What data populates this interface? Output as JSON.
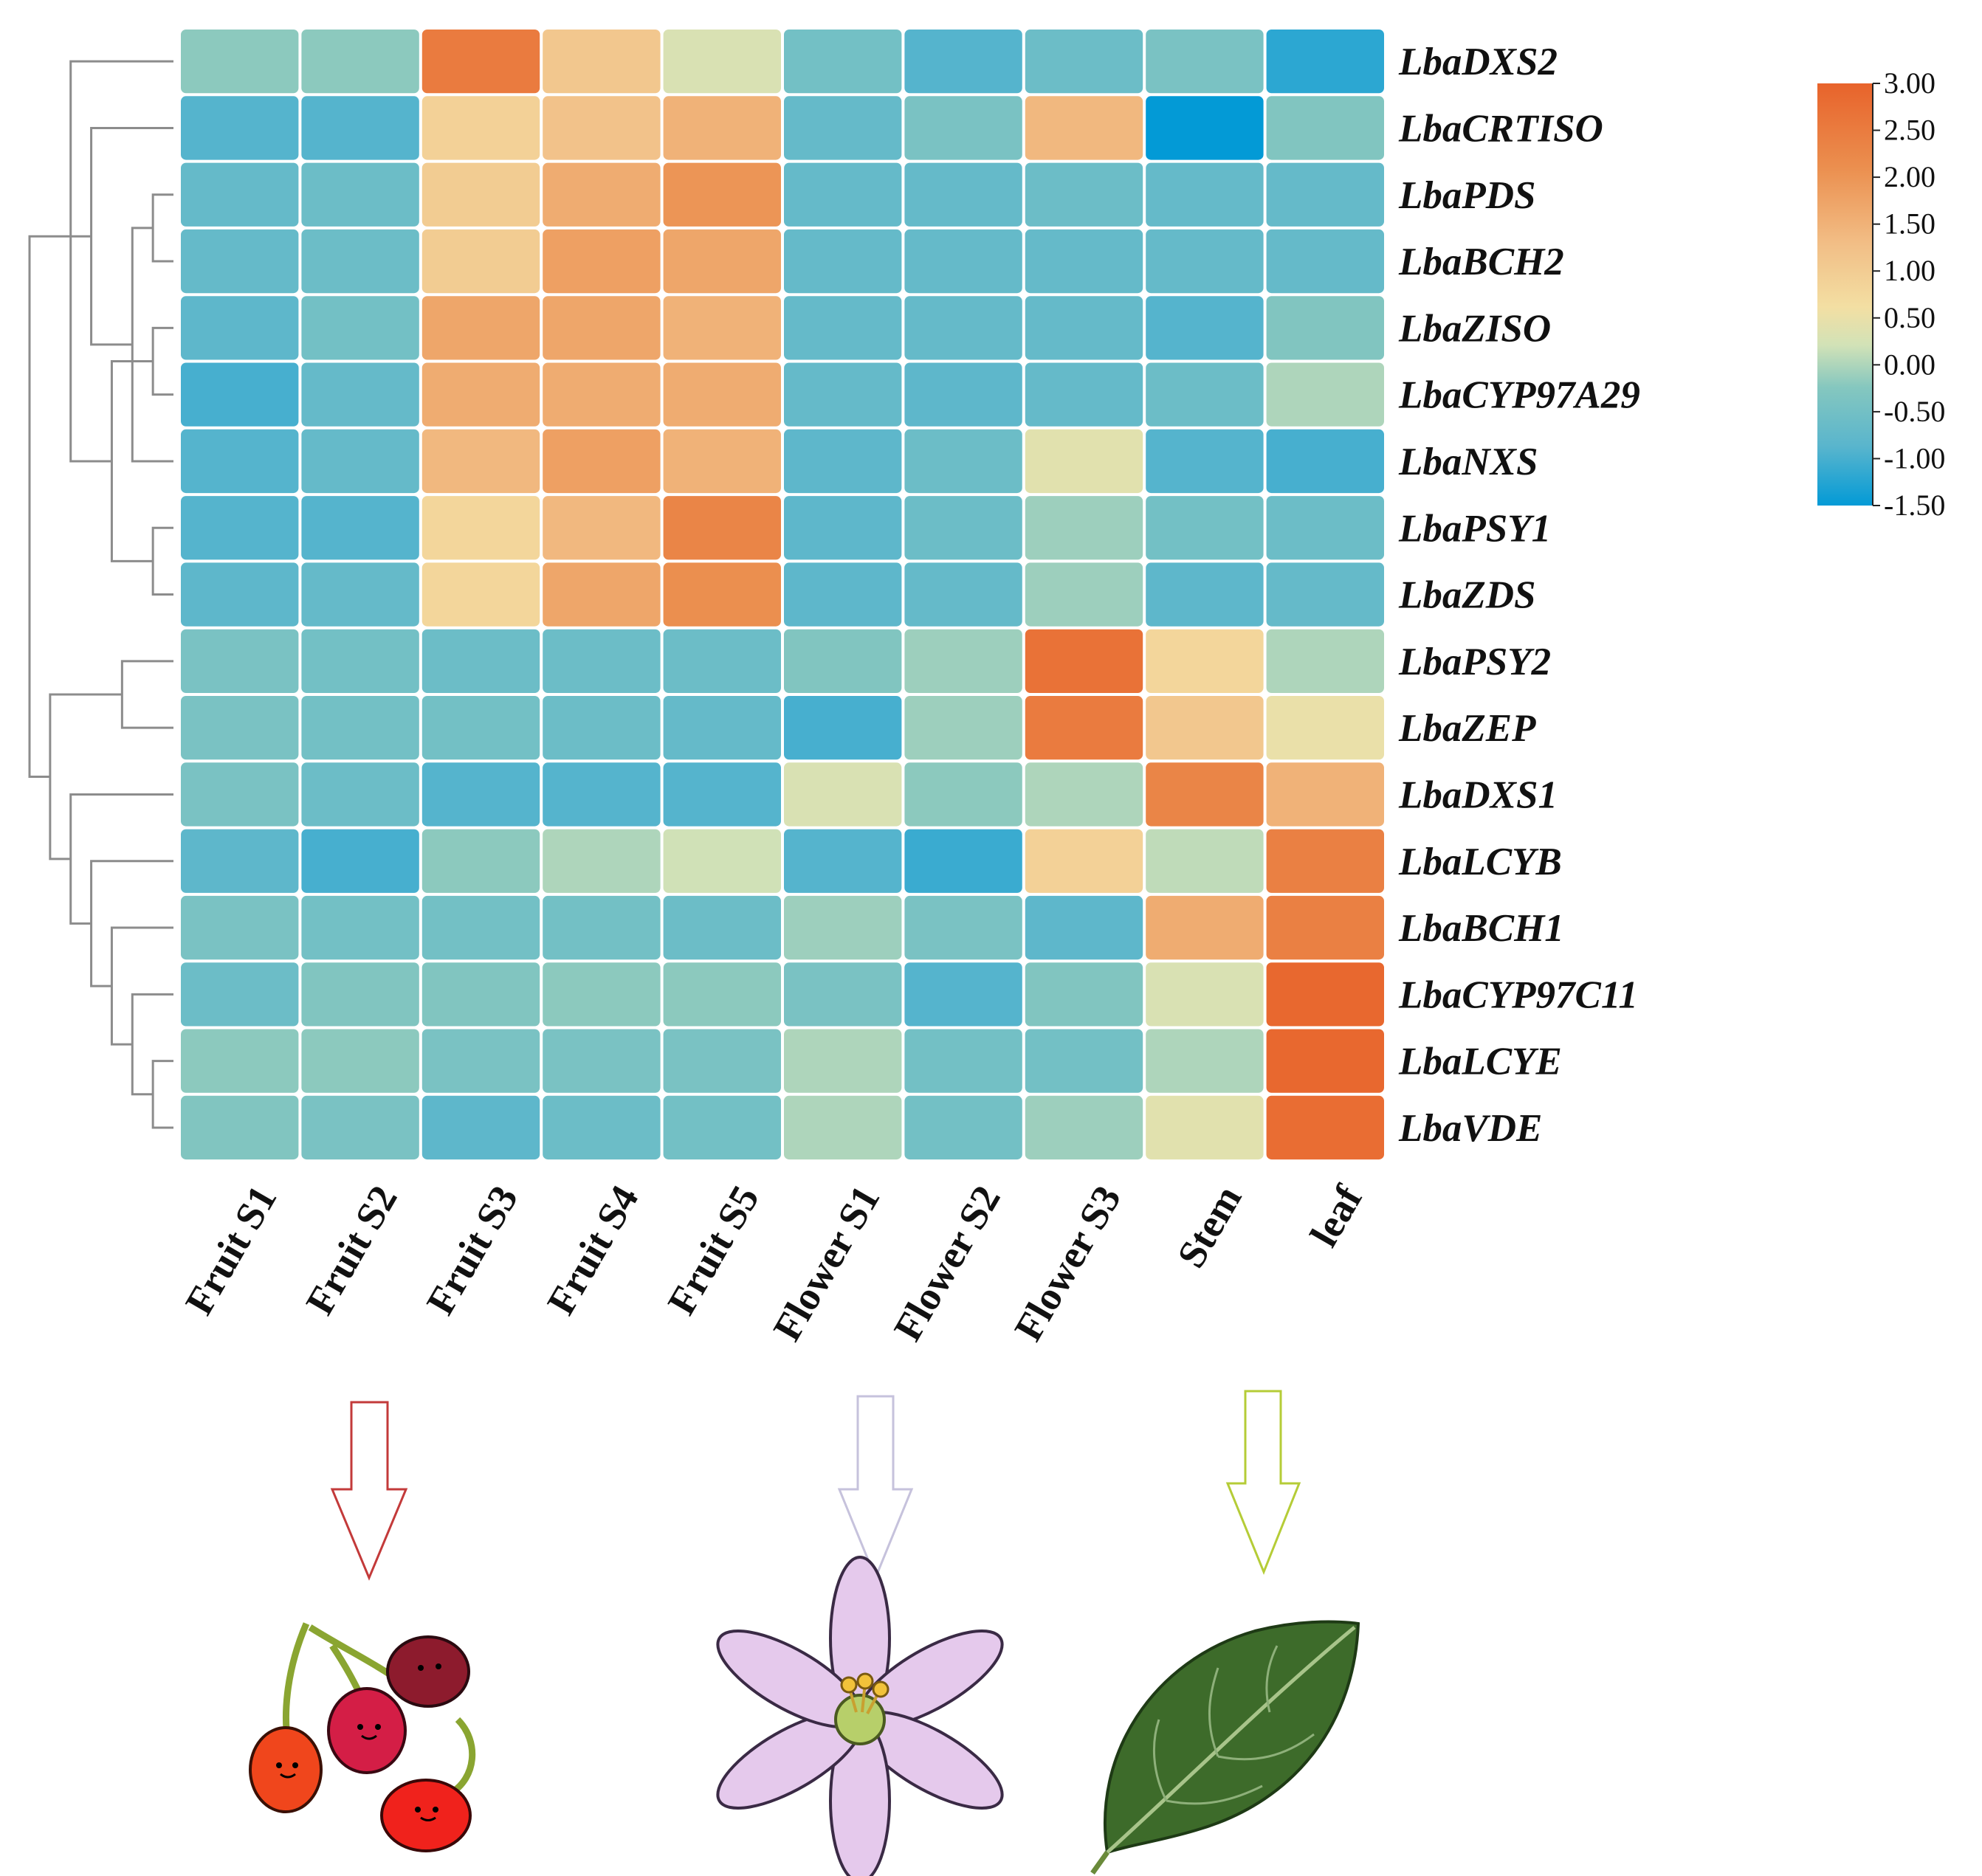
{
  "chart_data": {
    "type": "heatmap",
    "title": "",
    "columns": [
      "Fruit S1",
      "Fruit S2",
      "Fruit S3",
      "Fruit S4",
      "Fruit S5",
      "Flower S1",
      "Flower S2",
      "Flower S3",
      "Stem",
      "leaf"
    ],
    "rows": [
      "LbaDXS2",
      "LbaCRTISO",
      "LbaPDS",
      "LbaBCH2",
      "LbaZISO",
      "LbaCYP97A29",
      "LbaNXS",
      "LbaPSY1",
      "LbaZDS",
      "LbaPSY2",
      "LbaZEP",
      "LbaDXS1",
      "LbaLCYB",
      "LbaBCH1",
      "LbaCYP97C11",
      "LbaLCYE",
      "LbaVDE"
    ],
    "values": [
      [
        -0.2,
        -0.2,
        2.5,
        1.1,
        0.3,
        -0.5,
        -0.9,
        -0.6,
        -0.4,
        -1.2
      ],
      [
        -0.9,
        -0.9,
        0.9,
        1.2,
        1.5,
        -0.7,
        -0.4,
        1.4,
        -1.5,
        -0.3
      ],
      [
        -0.7,
        -0.6,
        1.0,
        1.6,
        2.0,
        -0.7,
        -0.7,
        -0.6,
        -0.7,
        -0.7
      ],
      [
        -0.7,
        -0.6,
        1.0,
        1.8,
        1.7,
        -0.7,
        -0.7,
        -0.7,
        -0.7,
        -0.7
      ],
      [
        -0.8,
        -0.5,
        1.7,
        1.7,
        1.5,
        -0.7,
        -0.7,
        -0.7,
        -0.9,
        -0.3
      ],
      [
        -1.0,
        -0.7,
        1.6,
        1.6,
        1.6,
        -0.7,
        -0.8,
        -0.7,
        -0.6,
        0.0
      ],
      [
        -0.9,
        -0.7,
        1.4,
        1.8,
        1.5,
        -0.8,
        -0.6,
        0.4,
        -0.9,
        -1.0
      ],
      [
        -0.9,
        -0.9,
        0.8,
        1.4,
        2.3,
        -0.8,
        -0.6,
        -0.1,
        -0.5,
        -0.6
      ],
      [
        -0.8,
        -0.7,
        0.8,
        1.7,
        2.1,
        -0.8,
        -0.7,
        -0.1,
        -0.8,
        -0.7
      ],
      [
        -0.4,
        -0.5,
        -0.6,
        -0.6,
        -0.6,
        -0.3,
        -0.1,
        2.7,
        0.8,
        0.0
      ],
      [
        -0.4,
        -0.5,
        -0.5,
        -0.6,
        -0.7,
        -1.0,
        -0.1,
        2.5,
        1.1,
        0.5
      ],
      [
        -0.4,
        -0.6,
        -0.9,
        -0.9,
        -0.9,
        0.3,
        -0.2,
        0.0,
        2.3,
        1.5
      ],
      [
        -0.8,
        -1.0,
        -0.2,
        0.0,
        0.2,
        -0.9,
        -1.1,
        0.9,
        0.1,
        2.4
      ],
      [
        -0.4,
        -0.5,
        -0.5,
        -0.5,
        -0.6,
        -0.1,
        -0.4,
        -0.8,
        1.6,
        2.4
      ],
      [
        -0.6,
        -0.3,
        -0.3,
        -0.2,
        -0.2,
        -0.4,
        -0.9,
        -0.3,
        0.3,
        2.9
      ],
      [
        -0.2,
        -0.2,
        -0.4,
        -0.4,
        -0.4,
        0.0,
        -0.5,
        -0.5,
        0.0,
        2.9
      ],
      [
        -0.3,
        -0.4,
        -0.8,
        -0.6,
        -0.5,
        0.0,
        -0.5,
        -0.1,
        0.4,
        2.8
      ]
    ],
    "colorbar": {
      "min": -1.5,
      "max": 3.0,
      "ticks": [
        "3.00",
        "2.50",
        "2.00",
        "1.50",
        "1.00",
        "0.50",
        "0.00",
        "-0.50",
        "-1.00",
        "-1.50"
      ],
      "colors": [
        "#039ad6",
        "#59b5cd",
        "#85c7bf",
        "#d2e2b7",
        "#f3dfa3",
        "#f2be86",
        "#eb8f4f",
        "#e8632b"
      ]
    },
    "row_dendrogram": {
      "merges": [
        [
          2,
          3
        ],
        [
          7,
          8
        ],
        [
          4,
          5
        ],
        [
          6,
          17
        ],
        [
          18,
          19
        ],
        [
          1,
          20
        ],
        [
          0,
          21
        ],
        [
          9,
          10
        ],
        [
          15,
          16
        ],
        [
          14,
          25
        ],
        [
          13,
          26
        ],
        [
          12,
          27
        ],
        [
          11,
          28
        ],
        [
          24,
          29
        ],
        [
          22,
          30
        ]
      ],
      "heights": [
        1,
        1,
        1,
        2,
        3,
        4,
        5,
        2.5,
        1,
        2,
        3,
        4,
        5,
        6,
        7
      ]
    },
    "groups": [
      {
        "name": "Fruit",
        "color": "#c33a3a"
      },
      {
        "name": "Flower",
        "color": "#c6c2dc"
      },
      {
        "name": "Leaf",
        "color": "#b5cc37"
      }
    ]
  }
}
